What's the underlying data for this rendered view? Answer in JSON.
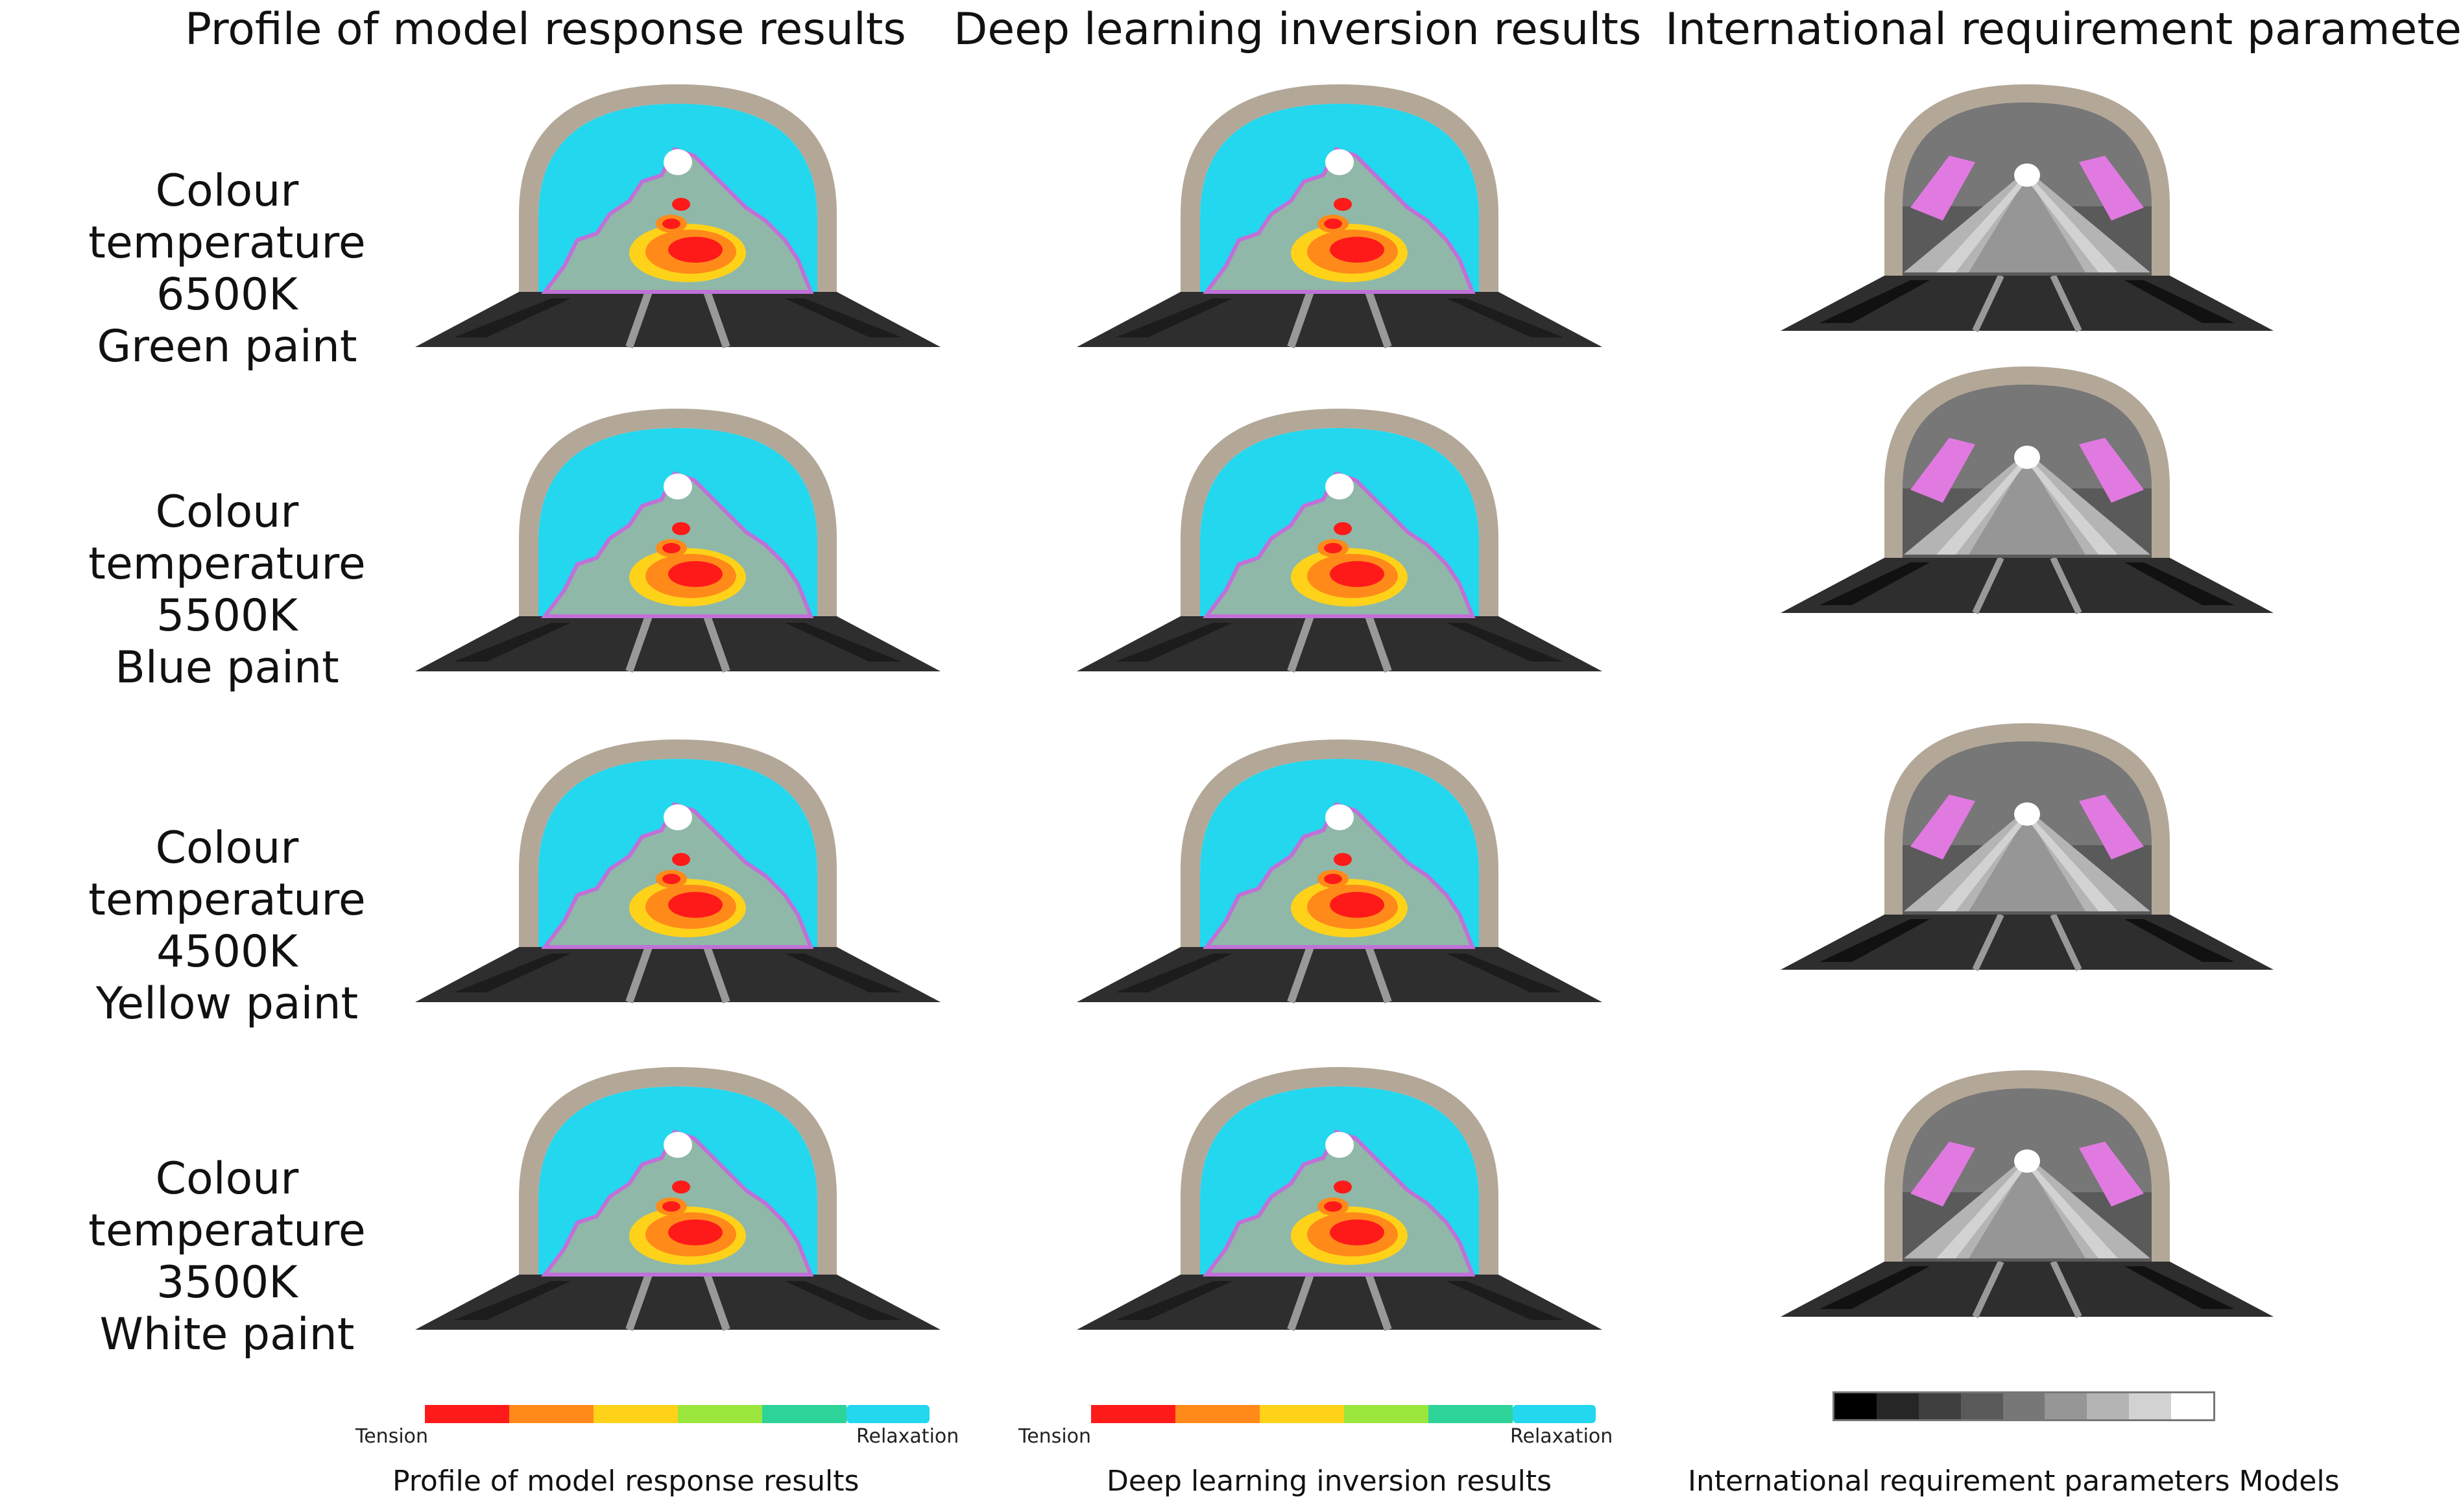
{
  "columns": [
    {
      "title": "Profile of model response results",
      "legend_caption": "Profile of model response results",
      "legend_left": "Tension",
      "legend_right": "Relaxation"
    },
    {
      "title": "Deep learning inversion results",
      "legend_caption": "Deep learning inversion results",
      "legend_left": "Tension",
      "legend_right": "Relaxation"
    },
    {
      "title": "International requirement parameters",
      "legend_caption": "International requirement parameters Models"
    }
  ],
  "rows": [
    {
      "line1": "Colour temperature",
      "line2": "6500K",
      "line3": "Green paint"
    },
    {
      "line1": "Colour temperature",
      "line2": "5500K",
      "line3": "Blue paint"
    },
    {
      "line1": "Colour temperature",
      "line2": "4500K",
      "line3": "Yellow paint"
    },
    {
      "line1": "Colour temperature",
      "line2": "3500K",
      "line3": "White paint"
    }
  ],
  "colors": {
    "heat_scale": [
      "#ff1a1a",
      "#ff8a1a",
      "#ffd21a",
      "#9be63c",
      "#2ed39a",
      "#22d7ee"
    ],
    "gray_scale": [
      "#000000",
      "#262626",
      "#3f3f3f",
      "#5a5a5a",
      "#777777",
      "#969696",
      "#b4b4b4",
      "#d2d2d2",
      "#ffffff"
    ],
    "tunnel_lining": "#b3a898",
    "road": "#2e2e2e",
    "cyan_field": "#22d7ee",
    "gray_green": "#8fb8a8",
    "magenta": "#e07ae0"
  }
}
